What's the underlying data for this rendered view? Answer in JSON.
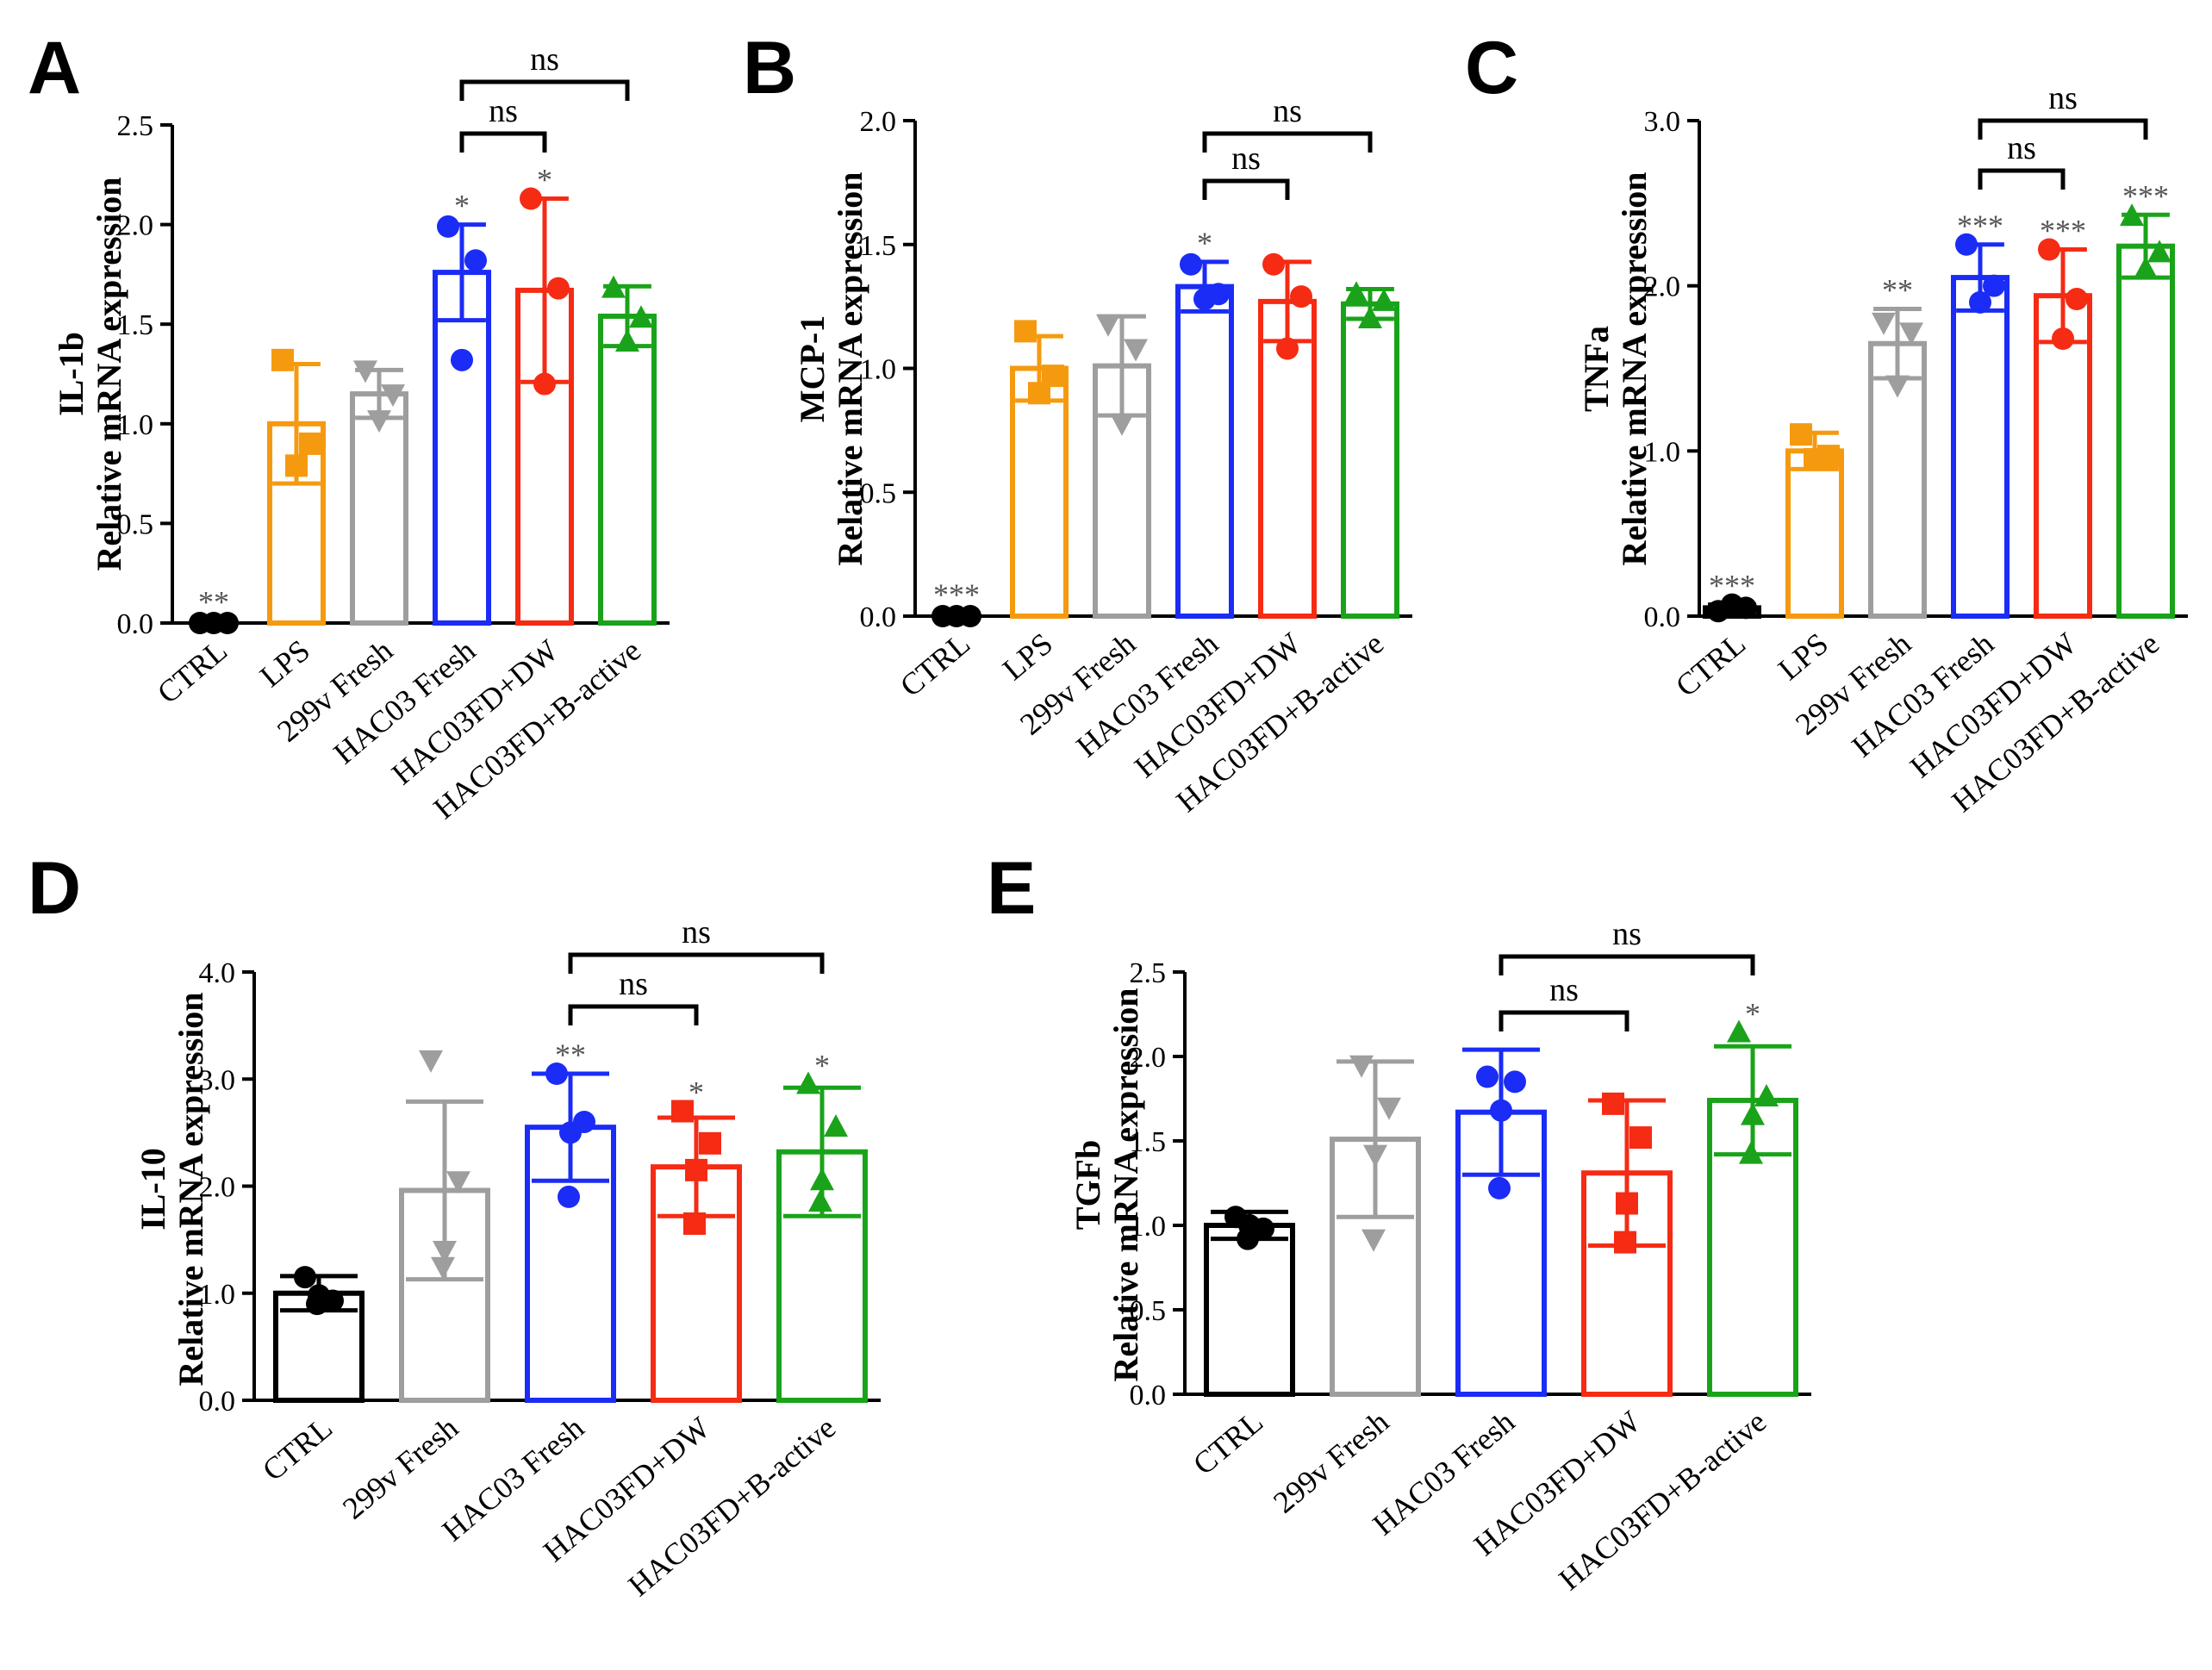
{
  "chart_data": [
    {
      "panel": "A",
      "type": "bar",
      "ylabel_top": "IL-1b",
      "ylabel_bottom": "Relative mRNA expression",
      "ylim": [
        0,
        2.5
      ],
      "ticks": [
        "0.0",
        "0.5",
        "1.0",
        "1.5",
        "2.0",
        "2.5"
      ],
      "categories": [
        "CTRL",
        "LPS",
        "299v Fresh",
        "HAC03 Fresh",
        "HAC03FD+DW",
        "HAC03FD+B-active"
      ],
      "colors": [
        "#000000",
        "#f59a0f",
        "#9e9e9e",
        "#1a2cf5",
        "#f52b14",
        "#1aa31a"
      ],
      "values": [
        0.0,
        1.0,
        1.15,
        1.76,
        1.67,
        1.54
      ],
      "sd": [
        0.01,
        0.3,
        0.12,
        0.24,
        0.46,
        0.15
      ],
      "points": [
        [
          0.0,
          0.0,
          0.0
        ],
        [
          1.32,
          0.79,
          0.9
        ],
        [
          1.27,
          1.02,
          1.15
        ],
        [
          1.99,
          1.32,
          1.82
        ],
        [
          2.13,
          1.2,
          1.68
        ],
        [
          1.68,
          1.41,
          1.53
        ]
      ],
      "markers": [
        "circle",
        "square",
        "tri-down",
        "circle",
        "circle",
        "tri-up"
      ],
      "sig": [
        "**",
        "",
        "",
        "*",
        "*",
        ""
      ],
      "brackets": [
        {
          "from": 3,
          "to": 4,
          "label": "ns",
          "level": 1
        },
        {
          "from": 3,
          "to": 5,
          "label": "ns",
          "level": 2
        }
      ]
    },
    {
      "panel": "B",
      "type": "bar",
      "ylabel_top": "MCP-1",
      "ylabel_bottom": "Relative mRNA expression",
      "ylim": [
        0,
        2.0
      ],
      "ticks": [
        "0.0",
        "0.5",
        "1.0",
        "1.5",
        "2.0"
      ],
      "categories": [
        "CTRL",
        "LPS",
        "299v Fresh",
        "HAC03 Fresh",
        "HAC03FD+DW",
        "HAC03FD+B-active"
      ],
      "colors": [
        "#000000",
        "#f59a0f",
        "#9e9e9e",
        "#1a2cf5",
        "#f52b14",
        "#1aa31a"
      ],
      "values": [
        0.0,
        1.0,
        1.01,
        1.33,
        1.27,
        1.26
      ],
      "sd": [
        0.01,
        0.13,
        0.2,
        0.1,
        0.16,
        0.06
      ],
      "points": [
        [
          0.0,
          0.0,
          0.0
        ],
        [
          1.15,
          0.9,
          0.97
        ],
        [
          1.18,
          0.78,
          1.08
        ],
        [
          1.42,
          1.28,
          1.3
        ],
        [
          1.42,
          1.08,
          1.29
        ],
        [
          1.3,
          1.2,
          1.27
        ]
      ],
      "markers": [
        "circle",
        "square",
        "tri-down",
        "circle",
        "circle",
        "tri-up"
      ],
      "sig": [
        "***",
        "",
        "",
        "*",
        "",
        ""
      ],
      "brackets": [
        {
          "from": 3,
          "to": 4,
          "label": "ns",
          "level": 1
        },
        {
          "from": 3,
          "to": 5,
          "label": "ns",
          "level": 2
        }
      ]
    },
    {
      "panel": "C",
      "type": "bar",
      "ylabel_top": "TNFa",
      "ylabel_bottom": "Relative mRNA expression",
      "ylim": [
        0,
        3.0
      ],
      "ticks": [
        "0.0",
        "1.0",
        "2.0",
        "3.0"
      ],
      "categories": [
        "CTRL",
        "LPS",
        "299v Fresh",
        "HAC03 Fresh",
        "HAC03FD+DW",
        "HAC03FD+B-active"
      ],
      "colors": [
        "#000000",
        "#f59a0f",
        "#9e9e9e",
        "#1a2cf5",
        "#f52b14",
        "#1aa31a"
      ],
      "values": [
        0.05,
        1.0,
        1.65,
        2.05,
        1.94,
        2.24
      ],
      "sd": [
        0.02,
        0.11,
        0.21,
        0.2,
        0.28,
        0.19
      ],
      "points": [
        [
          0.03,
          0.07,
          0.05
        ],
        [
          1.1,
          0.95,
          0.97
        ],
        [
          1.78,
          1.4,
          1.72
        ],
        [
          2.25,
          1.9,
          2.0
        ],
        [
          2.22,
          1.68,
          1.92
        ],
        [
          2.42,
          2.1,
          2.2
        ]
      ],
      "markers": [
        "circle",
        "square",
        "tri-down",
        "circle",
        "circle",
        "tri-up"
      ],
      "sig": [
        "***",
        "",
        "**",
        "***",
        "***",
        "***"
      ],
      "brackets": [
        {
          "from": 3,
          "to": 4,
          "label": "ns",
          "level": 1
        },
        {
          "from": 3,
          "to": 5,
          "label": "ns",
          "level": 2
        }
      ]
    },
    {
      "panel": "D",
      "type": "bar",
      "ylabel_top": "IL-10",
      "ylabel_bottom": "Relative mRNA expression",
      "ylim": [
        0,
        4.0
      ],
      "ticks": [
        "0.0",
        "1.0",
        "2.0",
        "3.0",
        "4.0"
      ],
      "categories": [
        "CTRL",
        "299v Fresh",
        "HAC03 Fresh",
        "HAC03FD+DW",
        "HAC03FD+B-active"
      ],
      "colors": [
        "#000000",
        "#9e9e9e",
        "#1a2cf5",
        "#f52b14",
        "#1aa31a"
      ],
      "values": [
        1.0,
        1.96,
        2.55,
        2.18,
        2.32
      ],
      "sd": [
        0.16,
        0.83,
        0.5,
        0.46,
        0.6
      ],
      "points": [
        [
          1.15,
          0.93,
          0.98,
          0.9
        ],
        [
          3.18,
          2.05,
          1.4,
          1.25
        ],
        [
          3.05,
          2.6,
          2.5,
          1.9
        ],
        [
          2.7,
          2.4,
          2.15,
          1.65
        ],
        [
          2.95,
          2.55,
          2.05,
          1.85
        ]
      ],
      "markers": [
        "circle",
        "tri-down",
        "circle",
        "square",
        "tri-up"
      ],
      "sig": [
        "",
        "",
        "**",
        "*",
        "*"
      ],
      "brackets": [
        {
          "from": 2,
          "to": 3,
          "label": "ns",
          "level": 1
        },
        {
          "from": 2,
          "to": 4,
          "label": "ns",
          "level": 2
        }
      ]
    },
    {
      "panel": "E",
      "type": "bar",
      "ylabel_top": "TGFb",
      "ylabel_bottom": "Relative mRNA expression",
      "ylim": [
        0,
        2.5
      ],
      "ticks": [
        "0.0",
        "0.5",
        "1.0",
        "1.5",
        "2.0",
        "2.5"
      ],
      "categories": [
        "CTRL",
        "299v Fresh",
        "HAC03 Fresh",
        "HAC03FD+DW",
        "HAC03FD+B-active"
      ],
      "colors": [
        "#000000",
        "#9e9e9e",
        "#1a2cf5",
        "#f52b14",
        "#1aa31a"
      ],
      "values": [
        1.0,
        1.51,
        1.67,
        1.31,
        1.74
      ],
      "sd": [
        0.08,
        0.46,
        0.37,
        0.43,
        0.32
      ],
      "points": [
        [
          1.05,
          0.98,
          1.0,
          0.92
        ],
        [
          1.95,
          1.7,
          1.42,
          0.92
        ],
        [
          1.88,
          1.85,
          1.68,
          1.22
        ],
        [
          1.72,
          1.52,
          1.13,
          0.9
        ],
        [
          2.14,
          1.76,
          1.65,
          1.42
        ]
      ],
      "markers": [
        "circle",
        "tri-down",
        "circle",
        "square",
        "tri-up"
      ],
      "sig": [
        "",
        "",
        "",
        "",
        "*"
      ],
      "brackets": [
        {
          "from": 2,
          "to": 3,
          "label": "ns",
          "level": 1
        },
        {
          "from": 2,
          "to": 4,
          "label": "ns",
          "level": 2
        }
      ]
    }
  ]
}
